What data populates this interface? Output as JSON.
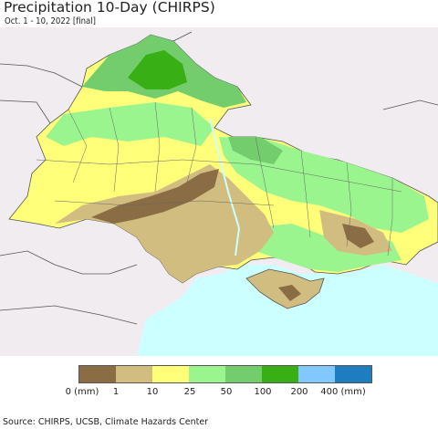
{
  "header": {
    "title": "Precipitation 10-Day (CHIRPS)",
    "subtitle": "Oct. 1 - 10, 2022 [final]"
  },
  "map": {
    "sea_color": "#ccffff",
    "outside_land_color": "#f0ecf0",
    "border_color": "#555555"
  },
  "legend": {
    "swatches": [
      {
        "color": "#8a6d44"
      },
      {
        "color": "#d2bd80"
      },
      {
        "color": "#ffff7a"
      },
      {
        "color": "#9bf58f"
      },
      {
        "color": "#73cd6c"
      },
      {
        "color": "#38af14"
      },
      {
        "color": "#80c8ff"
      },
      {
        "color": "#1e7dc1"
      }
    ],
    "labels": [
      "0 (mm)",
      "1",
      "10",
      "25",
      "50",
      "100",
      "200",
      "400 (mm)"
    ]
  },
  "footer": {
    "source": "Source: CHIRPS, UCSB, Climate Hazards Center"
  }
}
